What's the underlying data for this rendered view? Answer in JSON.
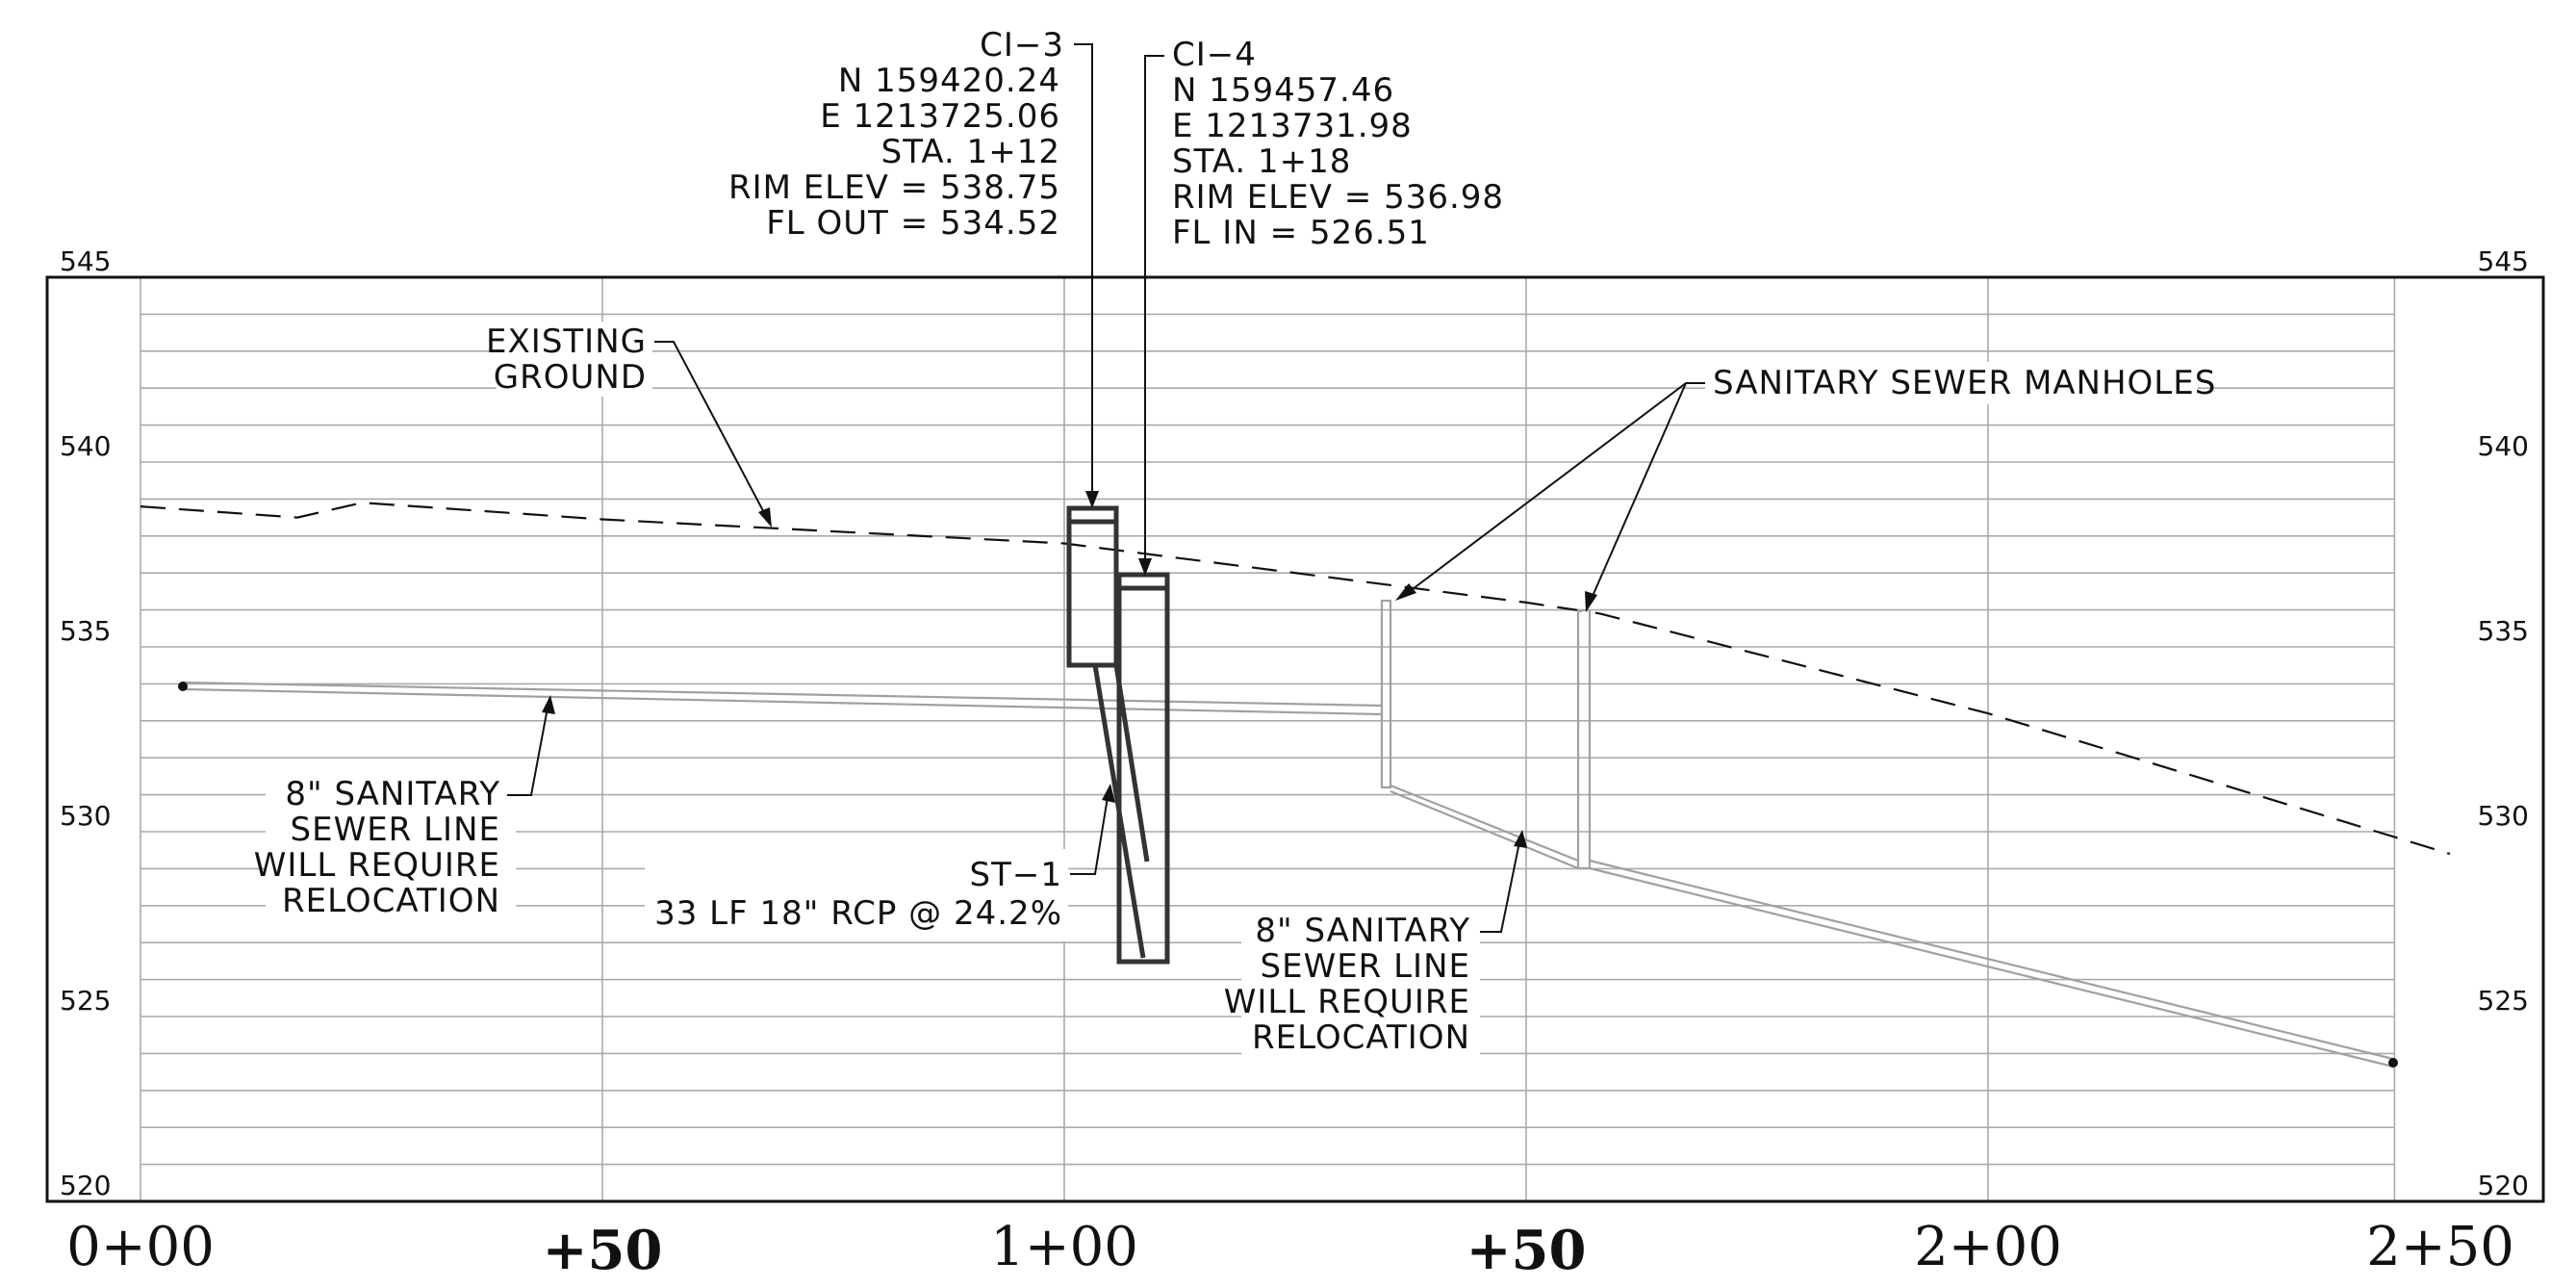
{
  "profile": {
    "stations": [
      "0+00",
      "+50",
      "1+00",
      "+50",
      "2+00",
      "2+50"
    ],
    "elevations_left": [
      "545",
      "540",
      "535",
      "530",
      "525",
      "520"
    ],
    "elevations_right": [
      "545",
      "540",
      "535",
      "530",
      "525",
      "520"
    ]
  },
  "existing_ground": {
    "label_lines": [
      "EXISTING",
      "GROUND"
    ],
    "points": [
      [
        0,
        538.8
      ],
      [
        17,
        538.5
      ],
      [
        24,
        538.9
      ],
      [
        50,
        538.45
      ],
      [
        100,
        537.8
      ],
      [
        150,
        536.2
      ],
      [
        158,
        535.9
      ],
      [
        200,
        533.2
      ],
      [
        250,
        529.4
      ]
    ]
  },
  "structures": {
    "ci3": {
      "name": "CI−3",
      "lines": [
        "N 159420.24",
        "E 1213725.06",
        "STA. 1+12",
        "RIM ELEV = 538.75",
        "FL OUT = 534.52"
      ]
    },
    "ci4": {
      "name": "CI−4",
      "lines": [
        "N 159457.46",
        "E 1213731.98",
        "STA. 1+18",
        "RIM ELEV = 536.98",
        "FL IN = 526.51"
      ]
    }
  },
  "storm_pipe": {
    "name": "ST−1",
    "description": "33 LF 18\" RCP @ 24.2%"
  },
  "manholes_label": "SANITARY SEWER MANHOLES",
  "sanitary_note_1": [
    "8\" SANITARY",
    "SEWER LINE",
    "WILL REQUIRE",
    "RELOCATION"
  ],
  "sanitary_note_2": [
    "8\" SANITARY",
    "SEWER LINE",
    "WILL REQUIRE",
    "RELOCATION"
  ],
  "colors": {
    "ink": "#111111",
    "grid": "#aaaaaa",
    "sewer": "#a0a0a0",
    "structure": "#333333"
  }
}
